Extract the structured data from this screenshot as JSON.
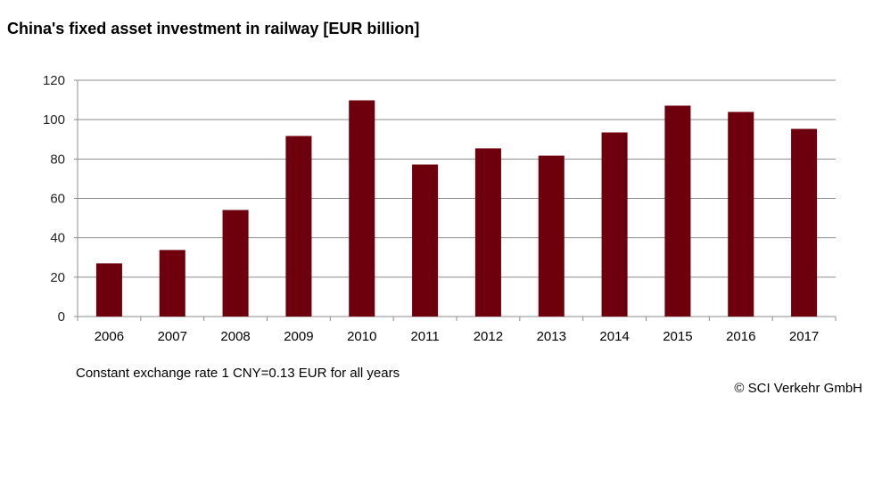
{
  "chart_data": {
    "type": "bar",
    "title": "China's fixed asset investment in railway  [EUR billion]",
    "categories": [
      "2006",
      "2007",
      "2008",
      "2009",
      "2010",
      "2011",
      "2012",
      "2013",
      "2014",
      "2015",
      "2016",
      "2017"
    ],
    "values": [
      27.0,
      33.8,
      54.1,
      91.7,
      109.8,
      77.2,
      85.4,
      81.7,
      93.5,
      107.1,
      103.9,
      95.3
    ],
    "xlabel": "",
    "ylabel": "",
    "ylim": [
      0,
      120
    ],
    "yticks": [
      0,
      20,
      40,
      60,
      80,
      100,
      120
    ],
    "grid": true,
    "bar_color": "#6e000e",
    "grid_color": "#8c8c8c",
    "note": "Constant exchange rate 1 CNY=0.13 EUR for all years",
    "source": "© SCI Verkehr GmbH"
  }
}
